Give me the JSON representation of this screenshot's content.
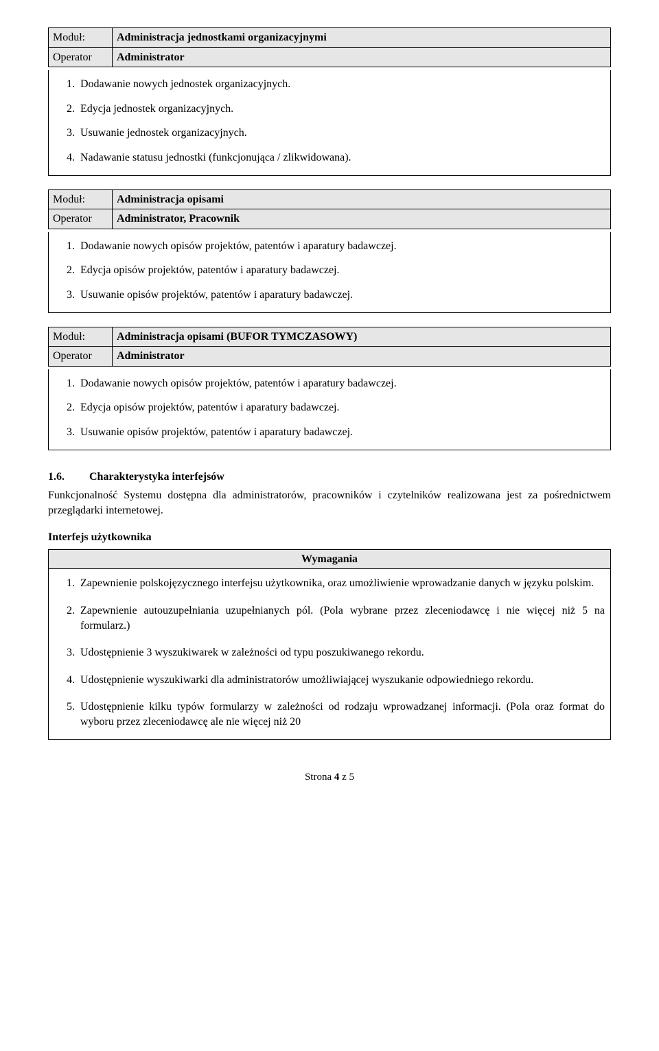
{
  "labels": {
    "module": "Moduł:",
    "operator": "Operator"
  },
  "module1": {
    "title": "Administracja jednostkami organizacyjnymi",
    "operator": "Administrator",
    "items": [
      "Dodawanie nowych jednostek organizacyjnych.",
      "Edycja jednostek organizacyjnych.",
      "Usuwanie jednostek organizacyjnych.",
      "Nadawanie statusu jednostki (funkcjonująca / zlikwidowana)."
    ]
  },
  "module2": {
    "title": "Administracja opisami",
    "operator": "Administrator, Pracownik",
    "items": [
      "Dodawanie nowych opisów projektów, patentów i aparatury badawczej.",
      "Edycja opisów projektów, patentów i aparatury badawczej.",
      "Usuwanie opisów projektów, patentów i aparatury badawczej."
    ]
  },
  "module3": {
    "title": "Administracja opisami (BUFOR TYMCZASOWY)",
    "operator": "Administrator",
    "items": [
      "Dodawanie nowych opisów projektów, patentów i aparatury badawczej.",
      "Edycja opisów projektów, patentów i aparatury badawczej.",
      "Usuwanie opisów projektów, patentów i aparatury badawczej."
    ]
  },
  "section": {
    "number": "1.6.",
    "title": "Charakterystyka interfejsów",
    "paragraph": "Funkcjonalność Systemu dostępna dla administratorów, pracowników i czytelników realizowana jest za pośrednictwem przeglądarki internetowej.",
    "subheading": "Interfejs użytkownika",
    "req_header": "Wymagania",
    "requirements": [
      "Zapewnienie polskojęzycznego interfejsu użytkownika, oraz umożliwienie wprowadzanie danych w języku polskim.",
      "Zapewnienie autouzupełniania uzupełnianych pól. (Pola wybrane przez zleceniodawcę i nie więcej niż 5 na formularz.)",
      "Udostępnienie 3 wyszukiwarek w zależności od typu poszukiwanego rekordu.",
      "Udostępnienie wyszukiwarki dla administratorów umożliwiającej wyszukanie odpowiedniego rekordu.",
      "Udostępnienie kilku typów formularzy w zależności od rodzaju wprowadzanej informacji. (Pola oraz format do wyboru przez zleceniodawcę ale nie więcej niż 20"
    ]
  },
  "footer": {
    "prefix": "Strona ",
    "bold": "4",
    "suffix": " z 5"
  }
}
